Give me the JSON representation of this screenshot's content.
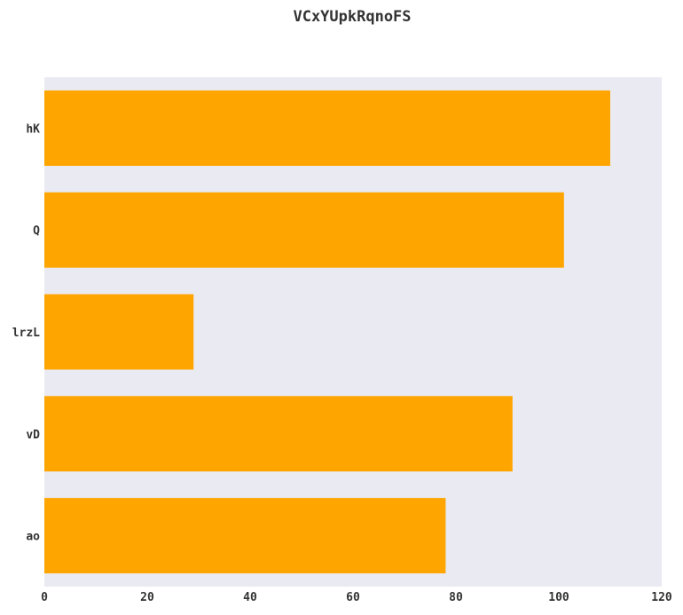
{
  "chart_data": {
    "type": "bar",
    "orientation": "horizontal",
    "title": "VCxYUpkRqnoFS",
    "xlabel": "",
    "ylabel": "",
    "categories": [
      "hK",
      "Q",
      "lrzL",
      "vD",
      "ao"
    ],
    "values": [
      110,
      101,
      29,
      91,
      78
    ],
    "xlim": [
      0,
      120
    ],
    "xticks": [
      0,
      20,
      40,
      60,
      80,
      100,
      120
    ],
    "grid": false,
    "legend": "none",
    "colors": {
      "bar": "#FFA500",
      "plot_background": "#EAEAF2"
    }
  }
}
